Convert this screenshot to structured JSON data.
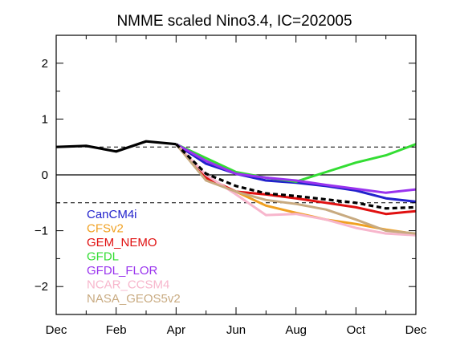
{
  "chart_data": {
    "type": "line",
    "title": "NMME scaled Nino3.4, IC=202005",
    "xlabel": "",
    "ylabel": "",
    "x_ticks": [
      {
        "month": 0,
        "label": "Dec"
      },
      {
        "month": 2,
        "label": "Feb"
      },
      {
        "month": 4,
        "label": "Apr"
      },
      {
        "month": 6,
        "label": "Jun"
      },
      {
        "month": 8,
        "label": "Aug"
      },
      {
        "month": 10,
        "label": "Oct"
      },
      {
        "month": 12,
        "label": "Dec"
      }
    ],
    "xlim": [
      0,
      12
    ],
    "y_ticks": [
      {
        "value": 2,
        "label": "2"
      },
      {
        "value": 1,
        "label": "1"
      },
      {
        "value": 0,
        "label": "0"
      },
      {
        "value": -1,
        "label": "−1"
      },
      {
        "value": -2,
        "label": "−2"
      }
    ],
    "ylim": [
      -2.5,
      2.5
    ],
    "zero_line": 0,
    "threshold_lines": [
      0.5,
      -0.5
    ],
    "legend_placement": "lower-left",
    "observed": {
      "color": "#000000",
      "x": [
        0,
        1,
        2,
        3,
        4
      ],
      "values": [
        0.5,
        0.52,
        0.42,
        0.6,
        0.55
      ]
    },
    "ensemble_mean": {
      "color": "#000000",
      "x": [
        4,
        5,
        6,
        7,
        8,
        9,
        10,
        11,
        12
      ],
      "values": [
        0.55,
        0.02,
        -0.2,
        -0.33,
        -0.38,
        -0.44,
        -0.5,
        -0.6,
        -0.58
      ]
    },
    "series": [
      {
        "name": "CanCM4i",
        "color": "#2222cc",
        "x": [
          4,
          5,
          6,
          7,
          8,
          9,
          10,
          11,
          12
        ],
        "values": [
          0.55,
          0.2,
          0.02,
          -0.1,
          -0.14,
          -0.2,
          -0.28,
          -0.42,
          -0.48
        ]
      },
      {
        "name": "CFSv2",
        "color": "#f0a020",
        "x": [
          4,
          5,
          6,
          7,
          8,
          9,
          10,
          11,
          12
        ],
        "values": [
          0.55,
          -0.08,
          -0.3,
          -0.55,
          -0.68,
          -0.8,
          -0.88,
          -0.98,
          -1.06
        ]
      },
      {
        "name": "GEM_NEMO",
        "color": "#e01010",
        "x": [
          4,
          5,
          6,
          7,
          8,
          9,
          10,
          11,
          12
        ],
        "values": [
          0.55,
          -0.05,
          -0.3,
          -0.35,
          -0.42,
          -0.5,
          -0.58,
          -0.7,
          -0.65
        ]
      },
      {
        "name": "GFDL",
        "color": "#33dd33",
        "x": [
          4,
          5,
          6,
          7,
          8,
          9,
          10,
          11,
          12
        ],
        "values": [
          0.55,
          0.3,
          0.05,
          -0.05,
          -0.12,
          0.05,
          0.22,
          0.35,
          0.55
        ]
      },
      {
        "name": "GFDL_FLOR",
        "color": "#9933ee",
        "x": [
          4,
          5,
          6,
          7,
          8,
          9,
          10,
          11,
          12
        ],
        "values": [
          0.55,
          0.25,
          0.02,
          -0.05,
          -0.1,
          -0.18,
          -0.25,
          -0.32,
          -0.26
        ]
      },
      {
        "name": "NCAR_CCSM4",
        "color": "#f7b6cc",
        "x": [
          4,
          5,
          6,
          7,
          8,
          9,
          10,
          11,
          12
        ],
        "values": [
          0.55,
          0.0,
          -0.35,
          -0.72,
          -0.7,
          -0.8,
          -0.95,
          -1.05,
          -1.08
        ]
      },
      {
        "name": "NASA_GEOS5v2",
        "color": "#c8aa80",
        "x": [
          4,
          5,
          6,
          7,
          8,
          9,
          10,
          11,
          12
        ],
        "values": [
          0.55,
          -0.1,
          -0.3,
          -0.45,
          -0.52,
          -0.62,
          -0.8,
          -1.0,
          -1.05
        ]
      }
    ]
  }
}
